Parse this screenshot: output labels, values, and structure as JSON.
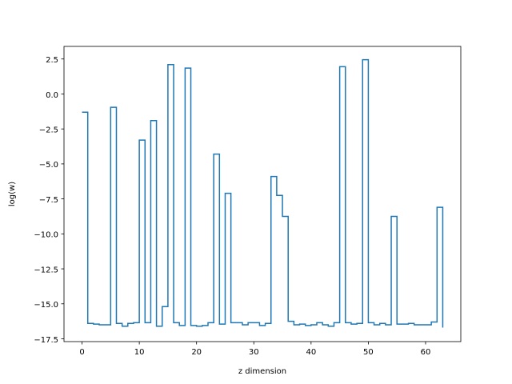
{
  "chart_data": {
    "type": "line",
    "drawstyle": "steps-post",
    "xlabel": "z dimension",
    "ylabel": "log(w)",
    "xlim": [
      -3.15,
      66.15
    ],
    "ylim": [
      -17.7,
      3.4
    ],
    "xticks": [
      0,
      10,
      20,
      30,
      40,
      50,
      60
    ],
    "yticks": [
      2.5,
      0.0,
      -2.5,
      -5.0,
      -7.5,
      -10.0,
      -12.5,
      -15.0,
      -17.5
    ],
    "ytick_labels": [
      "2.5",
      "0.0",
      "−2.5",
      "−5.0",
      "−7.5",
      "−10.0",
      "−12.5",
      "−15.0",
      "−17.5"
    ],
    "grid": false,
    "series": [
      {
        "color": "#1f77b4",
        "x": [
          0,
          1,
          2,
          3,
          4,
          5,
          6,
          7,
          8,
          9,
          10,
          11,
          12,
          13,
          14,
          15,
          16,
          17,
          18,
          19,
          20,
          21,
          22,
          23,
          24,
          25,
          26,
          27,
          28,
          29,
          30,
          31,
          32,
          33,
          34,
          35,
          36,
          37,
          38,
          39,
          40,
          41,
          42,
          43,
          44,
          45,
          46,
          47,
          48,
          49,
          50,
          51,
          52,
          53,
          54,
          55,
          56,
          57,
          58,
          59,
          60,
          61,
          62,
          63
        ],
        "values": [
          -1.3,
          -16.4,
          -16.45,
          -16.5,
          -16.5,
          -0.95,
          -16.4,
          -16.6,
          -16.4,
          -16.35,
          -3.3,
          -16.35,
          -1.9,
          -16.6,
          -15.2,
          2.1,
          -16.35,
          -16.55,
          1.85,
          -16.55,
          -16.6,
          -16.55,
          -16.35,
          -4.3,
          -16.45,
          -7.1,
          -16.35,
          -16.35,
          -16.5,
          -16.35,
          -16.35,
          -16.55,
          -16.4,
          -5.9,
          -7.25,
          -8.75,
          -16.25,
          -16.5,
          -16.45,
          -16.55,
          -16.5,
          -16.35,
          -16.5,
          -16.6,
          -16.35,
          1.95,
          -16.35,
          -16.45,
          -16.4,
          2.45,
          -16.35,
          -16.5,
          -16.4,
          -16.5,
          -8.75,
          -16.45,
          -16.45,
          -16.4,
          -16.5,
          -16.5,
          -16.5,
          -16.3,
          -8.1,
          -16.7
        ]
      }
    ]
  }
}
